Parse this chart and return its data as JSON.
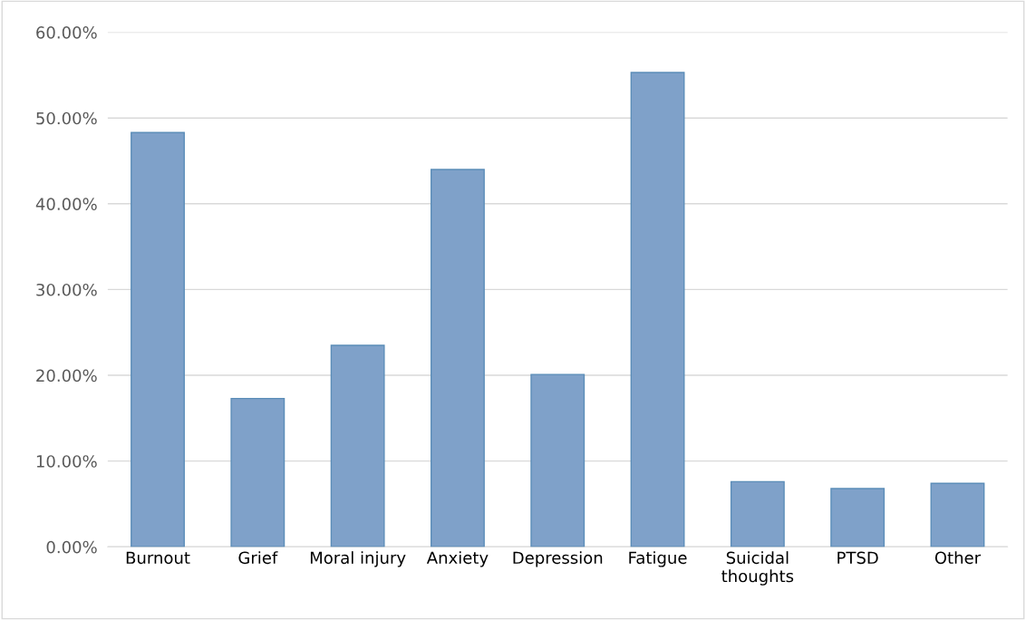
{
  "chart_data": {
    "type": "bar",
    "categories": [
      "Burnout",
      "Grief",
      "Moral injury",
      "Anxiety",
      "Depression",
      "Fatigue",
      "Suicidal thoughts",
      "PTSD",
      "Other"
    ],
    "values": [
      48.3,
      17.3,
      23.5,
      44.0,
      20.1,
      55.3,
      7.6,
      6.8,
      7.4
    ],
    "color": "#7fa1c9",
    "ylim": [
      0,
      60
    ],
    "yticks": [
      {
        "value": 0,
        "label": "0.00%"
      },
      {
        "value": 10,
        "label": "10.00%"
      },
      {
        "value": 20,
        "label": "20.00%"
      },
      {
        "value": 30,
        "label": "30.00%"
      },
      {
        "value": 40,
        "label": "40.00%"
      },
      {
        "value": 50,
        "label": "50.00%"
      },
      {
        "value": 60,
        "label": "60.00%"
      }
    ],
    "grid": "y",
    "legend": false
  }
}
